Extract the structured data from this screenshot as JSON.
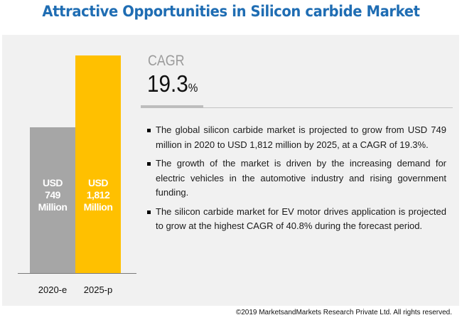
{
  "title": "Attractive Opportunities in Silicon carbide Market",
  "chart_data": {
    "type": "bar",
    "title": "",
    "xlabel": "",
    "ylabel": "",
    "categories": [
      "2020-e",
      "2025-p"
    ],
    "values": [
      749,
      1812
    ],
    "unit": "USD Million",
    "bar_labels": [
      [
        "USD",
        "749",
        "Million"
      ],
      [
        "USD",
        "1,812",
        "Million"
      ]
    ],
    "colors": [
      "#a6a6a6",
      "#ffc000"
    ],
    "grid": false,
    "legend": "none"
  },
  "cagr": {
    "label": "CAGR",
    "value": "19.3",
    "unit": "%"
  },
  "bullets": [
    "The global silicon carbide market is projected to grow from USD 749 million in 2020 to USD 1,812 million by 2025, at a CAGR of 19.3%.",
    "The growth of the market is driven by the increasing demand for electric vehicles in the automotive industry and rising government funding.",
    "The silicon carbide market for EV motor drives application is projected to grow at the highest CAGR of 40.8% during the forecast period."
  ],
  "footer": "©2019 MarketsandMarkets Research Private Ltd. All rights reserved.",
  "colors": {
    "title": "#1f6db3",
    "panel_background": "#f1f1f1"
  }
}
